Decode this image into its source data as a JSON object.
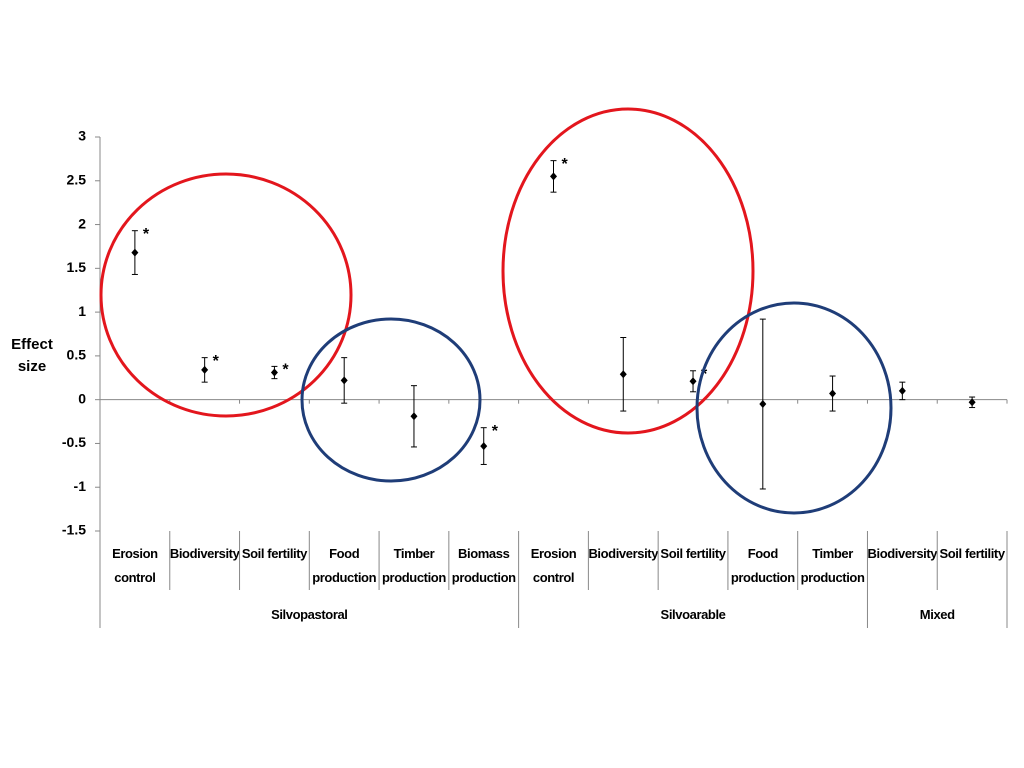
{
  "chart_data": {
    "type": "errorbar",
    "y_label": "Effect size",
    "ylim": [
      -1.5,
      3
    ],
    "yticks": [
      -1.5,
      -1,
      -0.5,
      0,
      0.5,
      1,
      1.5,
      2,
      2.5,
      3
    ],
    "color": "#000000",
    "groups": [
      {
        "name": "Silvopastoral",
        "categories": [
          "Erosion control",
          "Biodiversity",
          "Soil fertility",
          "Food production",
          "Timber production",
          "Biomass production"
        ],
        "values": [
          1.68,
          0.34,
          0.31,
          0.22,
          -0.19,
          -0.53
        ],
        "errors": [
          0.25,
          0.14,
          0.07,
          0.26,
          0.35,
          0.21
        ],
        "significance": [
          "*",
          "*",
          "*",
          null,
          null,
          "*"
        ]
      },
      {
        "name": "Silvoarable",
        "categories": [
          "Erosion control",
          "Biodiversity",
          "Soil fertility",
          "Food production",
          "Timber production"
        ],
        "values": [
          2.55,
          0.29,
          0.21,
          -0.05,
          0.07
        ],
        "errors": [
          0.18,
          0.42,
          0.12,
          0.97,
          0.2
        ],
        "significance": [
          "*",
          null,
          "*",
          null,
          null
        ]
      },
      {
        "name": "Mixed",
        "categories": [
          "Biodiversity",
          "Soil fertility"
        ],
        "values": [
          0.1,
          -0.03
        ],
        "errors": [
          0.1,
          0.06
        ],
        "significance": [
          null,
          null
        ]
      }
    ]
  }
}
